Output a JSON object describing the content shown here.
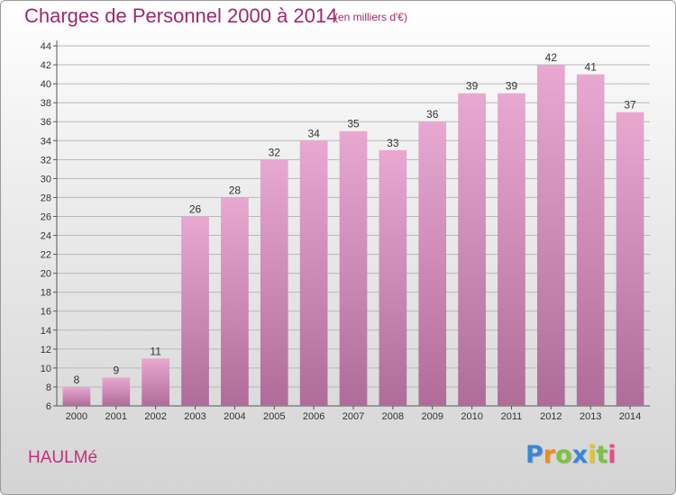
{
  "header": {
    "title": "Charges de Personnel 2000 à 2014",
    "unit": "(en milliers d'€)"
  },
  "footer": {
    "place": "HAULMé",
    "logo": {
      "letters": [
        "P",
        "r",
        "o",
        "x",
        "i",
        "t",
        "i"
      ],
      "colors": [
        "#3a86d8",
        "#f08a1e",
        "#7cc242",
        "#3a86d8",
        "#e8c21e",
        "#7cc242",
        "#e84d8a"
      ]
    }
  },
  "colors": {
    "title": "#a0286e",
    "bar_top": "#e8a8d0",
    "bar_bottom": "#b06c98",
    "grid": "#b8b8b8"
  },
  "chart_data": {
    "type": "bar",
    "title": "Charges de Personnel 2000 à 2014",
    "categories": [
      "2000",
      "2001",
      "2002",
      "2003",
      "2004",
      "2005",
      "2006",
      "2007",
      "2008",
      "2009",
      "2010",
      "2011",
      "2012",
      "2013",
      "2014"
    ],
    "values": [
      8,
      9,
      11,
      26,
      28,
      32,
      34,
      35,
      33,
      36,
      39,
      39,
      42,
      41,
      37
    ],
    "ylim": [
      6,
      44
    ],
    "yticks": [
      6,
      8,
      10,
      12,
      14,
      16,
      18,
      20,
      22,
      24,
      26,
      28,
      30,
      32,
      34,
      36,
      38,
      40,
      42,
      44
    ],
    "grid": true,
    "data_labels": true
  }
}
